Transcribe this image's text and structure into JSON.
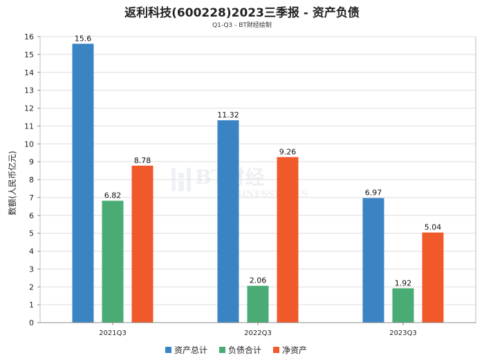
{
  "chart_data": {
    "type": "bar",
    "title": "返利科技(600228)2023三季报 - 资产负债",
    "subtitle": "Q1-Q3 - BT财经绘制",
    "ylabel": "数额(人民币亿元)",
    "xlabel": "",
    "ylim": [
      0,
      16
    ],
    "yticks": [
      0,
      1,
      2,
      3,
      4,
      5,
      6,
      7,
      8,
      9,
      10,
      11,
      12,
      13,
      14,
      15,
      16
    ],
    "categories": [
      "2021Q3",
      "2022Q3",
      "2023Q3"
    ],
    "series": [
      {
        "name": "资产总计",
        "color": "#3a84c4",
        "values": [
          15.6,
          11.32,
          6.97
        ],
        "labels": [
          "15.6",
          "11.32",
          "6.97"
        ]
      },
      {
        "name": "负债合计",
        "color": "#4aab74",
        "values": [
          6.82,
          2.06,
          1.92
        ],
        "labels": [
          "6.82",
          "2.06",
          "1.92"
        ]
      },
      {
        "name": "净资产",
        "color": "#f05a2a",
        "values": [
          8.78,
          9.26,
          5.04
        ],
        "labels": [
          "8.78",
          "9.26",
          "5.04"
        ]
      }
    ],
    "grid": true,
    "legend": "bottom-center"
  },
  "watermark": {
    "name": "BT财经",
    "sub": "BUSINESSTIMES"
  }
}
